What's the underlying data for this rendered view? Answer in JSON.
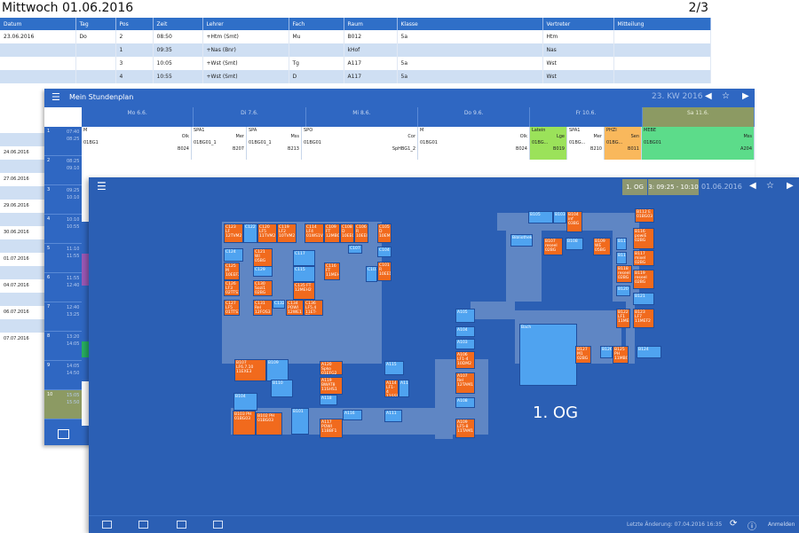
{
  "substitution": {
    "title": "Mittwoch 01.06.2016",
    "page": "2/3",
    "columns": [
      "Datum",
      "Tag",
      "Pos",
      "Zeit",
      "Lehrer",
      "Fach",
      "Raum",
      "Klasse",
      "Vertreter",
      "Mitteilung"
    ],
    "rows": [
      [
        "23.06.2016",
        "Do",
        "2",
        "08:50",
        "+Htm (Smt)",
        "Mu",
        "B012",
        "5a",
        "Htm",
        ""
      ],
      [
        "",
        "",
        "1",
        "09:35",
        "+Nas (Bnr)",
        "",
        "kHof",
        "",
        "Nas",
        ""
      ],
      [
        "",
        "",
        "3",
        "10:05",
        "+Wst (Smt)",
        "Tg",
        "A117",
        "5a",
        "Wst",
        ""
      ],
      [
        "",
        "",
        "4",
        "10:55",
        "+Wst (Smt)",
        "D",
        "A117",
        "5a",
        "Wst",
        ""
      ]
    ],
    "dates": [
      "24.06.2016",
      "27.06.2016",
      "29.06.2016",
      "30.06.2016",
      "01.07.2016",
      "04.07.2016",
      "06.07.2016",
      "07.07.2016"
    ]
  },
  "timetable": {
    "title": "Mein Stundenplan",
    "week": "23. KW 2016",
    "days": [
      "Mo 6.6.",
      "Di 7.6.",
      "Mi 8.6.",
      "Do 9.6.",
      "Fr 10.6.",
      "Sa 11.6."
    ],
    "periods": [
      {
        "n": "1",
        "t1": "07:40",
        "t2": "08:25"
      },
      {
        "n": "2",
        "t1": "08:25",
        "t2": "09:10"
      },
      {
        "n": "3",
        "t1": "09:25",
        "t2": "10:10"
      },
      {
        "n": "4",
        "t1": "10:10",
        "t2": "10:55"
      },
      {
        "n": "5",
        "t1": "11:10",
        "t2": "11:55"
      },
      {
        "n": "6",
        "t1": "11:55",
        "t2": "12:40"
      },
      {
        "n": "7",
        "t1": "12:40",
        "t2": "13:25"
      },
      {
        "n": "8",
        "t1": "13:20",
        "t2": "14:05"
      },
      {
        "n": "9",
        "t1": "14:05",
        "t2": "14:50"
      },
      {
        "n": "10",
        "t1": "15:05",
        "t2": "15:50"
      }
    ],
    "cells": [
      {
        "a": "M",
        "b": "Olk",
        "c": "01BG1",
        "d": "B024"
      },
      {
        "a": "SPA1",
        "b": "Mer",
        "c": "01BG01_1",
        "d": "B207"
      },
      {
        "a": "SPA",
        "b": "Mss",
        "c": "01BG01_1",
        "d": "B213"
      },
      {
        "a": "SPO",
        "b": "Cor",
        "c": "01BG01",
        "d": "SpHBG1_2"
      },
      {
        "a": "M",
        "b": "Olk",
        "c": "01BG01",
        "d": "B024"
      },
      {
        "a": "Latein",
        "b": "Lge",
        "c": "01BG...",
        "d": "B019"
      },
      {
        "a": "SPA1",
        "b": "Mer",
        "c": "01BG...",
        "d": "B210"
      },
      {
        "a": "PHZI",
        "b": "Sen",
        "c": "01BG...",
        "d": "B011"
      },
      {
        "a": "MEBE",
        "b": "Mss",
        "c": "01BG01",
        "d": "A204"
      }
    ]
  },
  "map": {
    "floor": "1. OG",
    "slot": "3: 09:25 - 10:10",
    "date": "01.06.2016",
    "floor_big": "1. OG",
    "last_change": "Letzte Änderung: 07.04.2016 16:35",
    "login": "Anmelden",
    "colors": {
      "free": "#4fa3f0",
      "busy": "#f16a1d",
      "corridor": "#5f86c4",
      "bg": "#2b5fb4"
    },
    "rooms": [
      {
        "id": "C123",
        "t": "C123 LF 12TVM2",
        "s": "busy"
      },
      {
        "id": "C122",
        "t": "C122",
        "s": "free"
      },
      {
        "id": "C120",
        "t": "C120 LF5 11TVM2",
        "s": "busy"
      },
      {
        "id": "C119",
        "t": "C119 LF2 10TVM2",
        "s": "busy"
      },
      {
        "id": "C114",
        "t": "C114 LF4 01WS1V",
        "s": "busy"
      },
      {
        "id": "C109",
        "t": "C109 FT 12MBO2",
        "s": "busy"
      },
      {
        "id": "C108",
        "t": "C108 D 10EEG",
        "s": "busy"
      },
      {
        "id": "C106",
        "t": "C106 R 10EEI2",
        "s": "busy"
      },
      {
        "id": "C105",
        "t": "C105 D 10EM1",
        "s": "busy"
      },
      {
        "id": "C124",
        "t": "C124",
        "s": "free"
      },
      {
        "id": "C121",
        "t": "C121 WI 05BG",
        "s": "busy"
      },
      {
        "id": "C117",
        "t": "C117",
        "s": "free"
      },
      {
        "id": "C107",
        "t": "C107",
        "s": "free"
      },
      {
        "id": "C104",
        "t": "C104",
        "s": "free"
      },
      {
        "id": "C125",
        "t": "C125 M 10EEF2",
        "s": "busy"
      },
      {
        "id": "C129",
        "t": "C129",
        "s": "free"
      },
      {
        "id": "C115",
        "t": "C115",
        "s": "free"
      },
      {
        "id": "C116",
        "t": "C116 FT 11MEH2",
        "s": "busy"
      },
      {
        "id": "C103",
        "t": "C103",
        "s": "free"
      },
      {
        "id": "C101",
        "t": "C101 R 10EE11",
        "s": "busy"
      },
      {
        "id": "C126",
        "t": "C126 LF3 02TTS1",
        "s": "busy"
      },
      {
        "id": "C130",
        "t": "C130 Sozi1 02BG",
        "s": "busy"
      },
      {
        "id": "C135",
        "t": "C135 FT 12MEH2",
        "s": "busy"
      },
      {
        "id": "C127",
        "t": "C127 LF5 01TTS1",
        "s": "busy"
      },
      {
        "id": "C131",
        "t": "C131 Rel 12FOS3",
        "s": "busy"
      },
      {
        "id": "C132",
        "t": "C132",
        "s": "free"
      },
      {
        "id": "C134",
        "t": "C134 POWI 12WE1",
        "s": "busy"
      },
      {
        "id": "C136",
        "t": "C136 LF5.4 11ET-E1",
        "s": "busy"
      },
      {
        "id": "B107",
        "t": "B107 LF6.7.10 11EXE3",
        "s": "busy"
      },
      {
        "id": "B109",
        "t": "B109",
        "s": "free"
      },
      {
        "id": "B110",
        "t": "B110",
        "s": "free"
      },
      {
        "id": "B104",
        "t": "B104",
        "s": "free"
      },
      {
        "id": "B103",
        "t": "B103 PH 01BG03",
        "s": "busy"
      },
      {
        "id": "B102",
        "t": "B102 PH 01BG03",
        "s": "busy"
      },
      {
        "id": "B101",
        "t": "B101",
        "s": "free"
      },
      {
        "id": "A120",
        "t": "A120 Spko 01EFG2",
        "s": "busy"
      },
      {
        "id": "A119",
        "t": "A119 BWAT8 11SHS1",
        "s": "busy"
      },
      {
        "id": "A118",
        "t": "A118",
        "s": "free"
      },
      {
        "id": "A117",
        "t": "A117 POWI 11BBF1",
        "s": "busy"
      },
      {
        "id": "A116",
        "t": "A116",
        "s": "free"
      },
      {
        "id": "A115",
        "t": "A115",
        "s": "free"
      },
      {
        "id": "A114",
        "t": "A114 LF1-4 11SSF1",
        "s": "busy"
      },
      {
        "id": "A112",
        "t": "A112",
        "s": "free"
      },
      {
        "id": "A111",
        "t": "A111",
        "s": "free"
      },
      {
        "id": "A105",
        "t": "A105",
        "s": "free"
      },
      {
        "id": "A104",
        "t": "A104",
        "s": "free"
      },
      {
        "id": "A103",
        "t": "A103",
        "s": "free"
      },
      {
        "id": "A106",
        "t": "A106 LF1-4 10DM2",
        "s": "busy"
      },
      {
        "id": "A107",
        "t": "A107 Rel 12TAM1",
        "s": "busy"
      },
      {
        "id": "A108",
        "t": "A108",
        "s": "free"
      },
      {
        "id": "A109",
        "t": "A109 LF5-8 11TAM1",
        "s": "busy"
      },
      {
        "id": "B104b",
        "t": "B104 inf 03BG",
        "s": "busy"
      },
      {
        "id": "B103b",
        "t": "B103",
        "s": "free"
      },
      {
        "id": "B105",
        "t": "B105",
        "s": "free"
      },
      {
        "id": "B112",
        "t": "B112 E 01BG03",
        "s": "busy"
      },
      {
        "id": "B107b",
        "t": "B107 reseel 02BG",
        "s": "busy"
      },
      {
        "id": "B108",
        "t": "B108",
        "s": "free"
      },
      {
        "id": "B109b",
        "t": "B109 WE 05BG",
        "s": "busy"
      },
      {
        "id": "B114",
        "t": "B114",
        "s": "free"
      },
      {
        "id": "B113",
        "t": "B113",
        "s": "free"
      },
      {
        "id": "B116",
        "t": "B116 powiE 02BG",
        "s": "busy"
      },
      {
        "id": "B115",
        "t": "B115",
        "s": "free"
      },
      {
        "id": "B117",
        "t": "B117 mixel 02BG",
        "s": "busy"
      },
      {
        "id": "B118",
        "t": "B118 reseel 02BG",
        "s": "busy"
      },
      {
        "id": "B119",
        "t": "B119 reseel 02BG",
        "s": "busy"
      },
      {
        "id": "B120",
        "t": "B120",
        "s": "free"
      },
      {
        "id": "B121",
        "t": "B121",
        "s": "free"
      },
      {
        "id": "B122",
        "t": "B122 LF1 11MEI1",
        "s": "busy"
      },
      {
        "id": "B123",
        "t": "B123 LF7 11MEF2",
        "s": "busy"
      },
      {
        "id": "Bach",
        "t": "Bach",
        "s": "free"
      },
      {
        "id": "B127",
        "t": "B127 M1 02BG",
        "s": "busy"
      },
      {
        "id": "B126",
        "t": "B126",
        "s": "free"
      },
      {
        "id": "B125",
        "t": "B125 PH 11MBI1",
        "s": "busy"
      },
      {
        "id": "B124",
        "t": "B124",
        "s": "free"
      },
      {
        "id": "Bib",
        "t": "Bibliothek",
        "s": "free"
      }
    ]
  }
}
